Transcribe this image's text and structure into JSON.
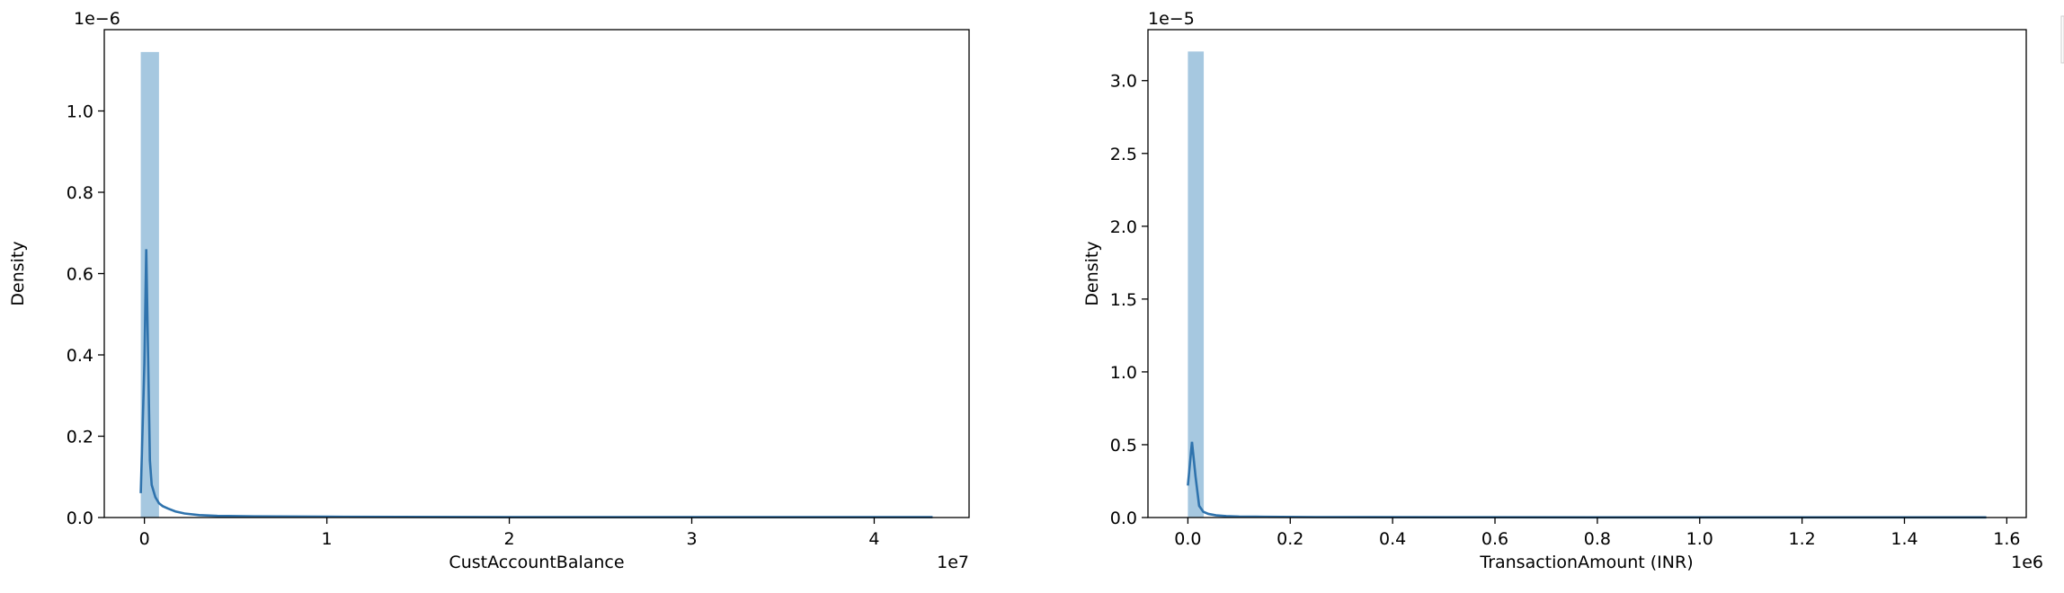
{
  "chart_data": [
    {
      "type": "histogram",
      "xlabel": "CustAccountBalance",
      "ylabel": "Density",
      "x_offset_label": "1e7",
      "y_offset_label": "1e−6",
      "xlim": [
        -2200000,
        45200000
      ],
      "ylim": [
        0,
        1.2
      ],
      "x_ticks": [
        {
          "value": 0,
          "label": "0"
        },
        {
          "value": 10000000,
          "label": "1"
        },
        {
          "value": 20000000,
          "label": "2"
        },
        {
          "value": 30000000,
          "label": "3"
        },
        {
          "value": 40000000,
          "label": "4"
        }
      ],
      "y_ticks": [
        {
          "value": 0.0,
          "label": "0.0"
        },
        {
          "value": 0.2,
          "label": "0.2"
        },
        {
          "value": 0.4,
          "label": "0.4"
        },
        {
          "value": 0.6,
          "label": "0.6"
        },
        {
          "value": 0.8,
          "label": "0.8"
        },
        {
          "value": 1.0,
          "label": "1.0"
        }
      ],
      "bars": [
        {
          "x0": -200000,
          "x1": 800000,
          "density": 1.145
        }
      ],
      "kde": {
        "x": [
          -200000,
          0,
          100000,
          200000,
          300000,
          400000,
          600000,
          800000,
          1000000,
          1300000,
          1700000,
          2200000,
          3000000,
          4000000,
          6000000,
          10000000,
          20000000,
          30000000,
          43200000
        ],
        "y": [
          0.06,
          0.38,
          0.66,
          0.4,
          0.14,
          0.08,
          0.05,
          0.035,
          0.028,
          0.022,
          0.015,
          0.01,
          0.006,
          0.004,
          0.003,
          0.002,
          0.001,
          0.001,
          0.001
        ]
      },
      "bar_color": "#a6c8e0",
      "line_color": "#2f73ad"
    },
    {
      "type": "histogram",
      "xlabel": "TransactionAmount (INR)",
      "ylabel": "Density",
      "x_offset_label": "1e6",
      "y_offset_label": "1e−5",
      "xlim": [
        -78000,
        1638000
      ],
      "ylim": [
        0,
        3.35
      ],
      "x_ticks": [
        {
          "value": 0,
          "label": "0.0"
        },
        {
          "value": 200000,
          "label": "0.2"
        },
        {
          "value": 400000,
          "label": "0.4"
        },
        {
          "value": 600000,
          "label": "0.6"
        },
        {
          "value": 800000,
          "label": "0.8"
        },
        {
          "value": 1000000,
          "label": "1.0"
        },
        {
          "value": 1200000,
          "label": "1.2"
        },
        {
          "value": 1400000,
          "label": "1.4"
        },
        {
          "value": 1600000,
          "label": "1.6"
        }
      ],
      "y_ticks": [
        {
          "value": 0.0,
          "label": "0.0"
        },
        {
          "value": 0.5,
          "label": "0.5"
        },
        {
          "value": 1.0,
          "label": "1.0"
        },
        {
          "value": 1.5,
          "label": "1.5"
        },
        {
          "value": 2.0,
          "label": "2.0"
        },
        {
          "value": 2.5,
          "label": "2.5"
        },
        {
          "value": 3.0,
          "label": "3.0"
        }
      ],
      "bars": [
        {
          "x0": 0,
          "x1": 31000,
          "density": 3.2
        }
      ],
      "kde": {
        "x": [
          0,
          8000,
          15000,
          22000,
          30000,
          40000,
          55000,
          75000,
          100000,
          150000,
          250000,
          500000,
          800000,
          1200000,
          1560000
        ],
        "y": [
          0.22,
          0.52,
          0.28,
          0.08,
          0.04,
          0.025,
          0.015,
          0.01,
          0.007,
          0.005,
          0.003,
          0.002,
          0.001,
          0.001,
          0.001
        ]
      },
      "bar_color": "#a6c8e0",
      "line_color": "#2f73ad"
    }
  ]
}
